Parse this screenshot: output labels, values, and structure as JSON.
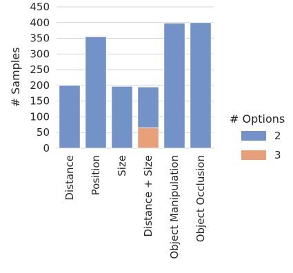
{
  "chart_data": {
    "type": "bar",
    "stacked": true,
    "title": "",
    "xlabel": "",
    "ylabel": "# Samples",
    "ylim": [
      0,
      450
    ],
    "yticks": [
      0,
      50,
      100,
      150,
      200,
      250,
      300,
      350,
      400,
      450
    ],
    "grid": "horizontal",
    "categories": [
      "Distance",
      "Position",
      "Size",
      "Distance + Size",
      "Object Manipulation",
      "Object Occlusion"
    ],
    "series": [
      {
        "name": "2",
        "color": "#7393c8",
        "values": [
          200,
          355,
          197,
          130,
          398,
          400
        ]
      },
      {
        "name": "3",
        "color": "#e8a07a",
        "values": [
          0,
          0,
          0,
          65,
          0,
          0
        ]
      }
    ],
    "legend": {
      "title": "# Options",
      "placement": "right"
    }
  }
}
